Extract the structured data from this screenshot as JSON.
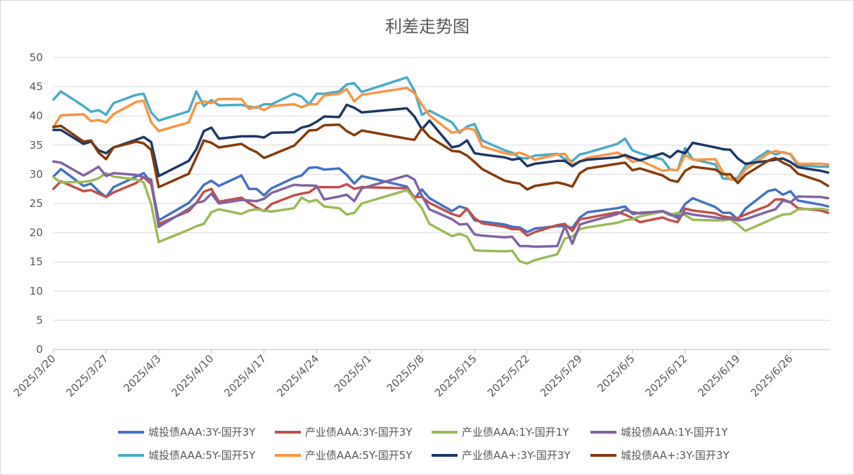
{
  "chart_data": {
    "type": "line",
    "title": "利差走势图",
    "xlabel": "",
    "ylabel": "",
    "ylim": [
      0,
      50
    ],
    "yticks": [
      0,
      5,
      10,
      15,
      20,
      25,
      30,
      35,
      40,
      45,
      50
    ],
    "grid": true,
    "legend_position": "bottom",
    "x_tick_labels": [
      "2025/3/20",
      "2025/3/27",
      "2025/4/3",
      "2025/4/10",
      "2025/4/17",
      "2025/4/24",
      "2025/5/1",
      "2025/5/8",
      "2025/5/15",
      "2025/5/22",
      "2025/5/29",
      "2025/6/5",
      "2025/6/12",
      "2025/6/19",
      "2025/6/26"
    ],
    "x": [
      "2025/3/20",
      "2025/3/21",
      "2025/3/24",
      "2025/3/25",
      "2025/3/26",
      "2025/3/27",
      "2025/3/28",
      "2025/3/31",
      "2025/4/1",
      "2025/4/2",
      "2025/4/3",
      "2025/4/7",
      "2025/4/8",
      "2025/4/9",
      "2025/4/10",
      "2025/4/11",
      "2025/4/14",
      "2025/4/15",
      "2025/4/16",
      "2025/4/17",
      "2025/4/18",
      "2025/4/21",
      "2025/4/22",
      "2025/4/23",
      "2025/4/24",
      "2025/4/25",
      "2025/4/27",
      "2025/4/28",
      "2025/4/29",
      "2025/4/30",
      "2025/5/6",
      "2025/5/7",
      "2025/5/8",
      "2025/5/9",
      "2025/5/12",
      "2025/5/13",
      "2025/5/14",
      "2025/5/15",
      "2025/5/16",
      "2025/5/19",
      "2025/5/20",
      "2025/5/21",
      "2025/5/22",
      "2025/5/23",
      "2025/5/26",
      "2025/5/27",
      "2025/5/28",
      "2025/5/29",
      "2025/5/30",
      "2025/6/3",
      "2025/6/4",
      "2025/6/5",
      "2025/6/6",
      "2025/6/9",
      "2025/6/10",
      "2025/6/11",
      "2025/6/12",
      "2025/6/13",
      "2025/6/16",
      "2025/6/17",
      "2025/6/18",
      "2025/6/19",
      "2025/6/20",
      "2025/6/23",
      "2025/6/24",
      "2025/6/25",
      "2025/6/26",
      "2025/6/27",
      "2025/6/30",
      "2025/7/1"
    ],
    "series": [
      {
        "name": "城投债AAA:3Y-国开3Y",
        "color": "#4472c4",
        "values": [
          29.6,
          30.9,
          28,
          28.4,
          27.1,
          26.1,
          27.8,
          29.6,
          30.2,
          28.6,
          22.1,
          25.1,
          26.5,
          28.2,
          28.9,
          28,
          29.8,
          27.5,
          27.5,
          26.4,
          27.6,
          29.4,
          29.8,
          31.1,
          31.2,
          30.8,
          31,
          29.9,
          28.4,
          29.7,
          27.9,
          25.8,
          27.4,
          25.9,
          23.7,
          24.5,
          24.1,
          22.1,
          21.9,
          21.4,
          21,
          20.9,
          20.1,
          20.7,
          21.1,
          21.1,
          20.8,
          22.6,
          23.5,
          24.2,
          24.5,
          23.2,
          23.4,
          23.6,
          23,
          22.9,
          24.9,
          25.9,
          24.4,
          23.4,
          23.4,
          22.3,
          24.1,
          27.1,
          27.4,
          26.5,
          27.1,
          25.5,
          24.8,
          24.5
        ]
      },
      {
        "name": "产业债AAA:3Y-国开3Y",
        "color": "#c0504d",
        "values": [
          27.5,
          28.8,
          27.1,
          27.3,
          26.7,
          26.1,
          26.9,
          28.5,
          29.5,
          28.3,
          21.5,
          23.7,
          25.1,
          27,
          27.5,
          25.3,
          26,
          25.1,
          24.3,
          23.7,
          24.9,
          26.4,
          26.7,
          26.9,
          27.8,
          27.8,
          27.8,
          28.3,
          27.5,
          27.8,
          27.6,
          26.1,
          26.1,
          25.1,
          23.2,
          22.8,
          24.1,
          22.5,
          21.6,
          21,
          20.6,
          20.6,
          19.5,
          20.1,
          21.3,
          21.5,
          20.3,
          22.3,
          22.5,
          23.5,
          23.1,
          22.5,
          21.8,
          22.6,
          22.1,
          21.8,
          24.1,
          23.8,
          23.3,
          22.8,
          22.6,
          22.5,
          23.1,
          24.6,
          25.7,
          25.7,
          25.2,
          24.2,
          23.8,
          23.4
        ]
      },
      {
        "name": "产业债AAA:1Y-国开1Y",
        "color": "#9bbb59",
        "values": [
          29.5,
          28.6,
          28.7,
          28.9,
          29.3,
          30.2,
          29.6,
          29.1,
          28.6,
          24.9,
          18.4,
          20.5,
          21.1,
          21.5,
          23.5,
          24,
          23.2,
          23.8,
          24,
          23.8,
          23.6,
          24.2,
          26,
          25.3,
          25.6,
          24.5,
          24.2,
          23.1,
          23.4,
          25,
          27.3,
          25.8,
          24.2,
          21.5,
          19.4,
          19.8,
          19.3,
          17,
          16.9,
          16.8,
          16.9,
          15.1,
          14.7,
          15.3,
          16.3,
          19,
          19.3,
          20.6,
          20.9,
          21.7,
          22.1,
          22.3,
          22.8,
          23.6,
          23.1,
          23.4,
          23,
          22.2,
          22.1,
          22.1,
          22.3,
          21.4,
          20.3,
          22,
          22.6,
          23.1,
          23.2,
          24,
          24.1,
          23.9
        ]
      },
      {
        "name": "城投债AAA:1Y-国开1Y",
        "color": "#8064a2",
        "values": [
          32.2,
          32,
          29.8,
          30.5,
          31.3,
          29.7,
          30.2,
          29.9,
          29.5,
          29.1,
          21,
          24.1,
          25.1,
          25.4,
          26.7,
          25,
          25.6,
          25.5,
          25.4,
          25.8,
          26.8,
          28.2,
          28.1,
          28.1,
          28,
          25.7,
          26.2,
          26.5,
          25.4,
          27.6,
          29.8,
          29.1,
          26.3,
          24,
          22.3,
          21.4,
          21.5,
          19.7,
          19.5,
          19.2,
          19.3,
          17.7,
          17.7,
          17.6,
          17.7,
          21.1,
          18.1,
          21.4,
          21.8,
          23.2,
          23.9,
          23.5,
          23.3,
          23.7,
          23.2,
          22.5,
          23.4,
          23.1,
          22.6,
          22.4,
          22.4,
          22.1,
          22.3,
          23.6,
          24,
          25.5,
          25.2,
          26.2,
          26.1,
          25.9
        ]
      },
      {
        "name": "城投债AAA:5Y-国开5Y",
        "color": "#4bacc6",
        "values": [
          42.8,
          44.2,
          41.7,
          40.7,
          41,
          40.2,
          42.2,
          43.6,
          43.8,
          40.6,
          39.2,
          40.8,
          44.2,
          41.7,
          42.7,
          41.8,
          41.9,
          41.6,
          41.4,
          42,
          42,
          43.8,
          43.3,
          42,
          43.8,
          43.8,
          44.2,
          45.4,
          45.6,
          44.1,
          46.6,
          44.3,
          40.2,
          40.9,
          38.9,
          37.1,
          38.2,
          38.6,
          35.8,
          34.1,
          33.7,
          32.8,
          32.7,
          33.2,
          33.5,
          32.6,
          32.3,
          33.4,
          33.7,
          35.2,
          36.1,
          34.1,
          33.6,
          32.5,
          30.8,
          30.7,
          34.5,
          32.6,
          31.7,
          29.3,
          29.2,
          29.4,
          31.4,
          34,
          33.4,
          33.8,
          33.4,
          31.5,
          31.3,
          31.3
        ]
      },
      {
        "name": "产业债AAA:5Y-国开5Y",
        "color": "#f79646",
        "values": [
          38.1,
          40.1,
          40.3,
          39.1,
          39.3,
          38.9,
          40.3,
          42.4,
          42.6,
          38.9,
          37.4,
          38.9,
          42.1,
          42.5,
          42.2,
          42.9,
          42.9,
          41.2,
          41.6,
          41,
          41.7,
          42,
          41.5,
          42,
          42,
          43.5,
          43.8,
          44.6,
          42.5,
          43.6,
          44.8,
          43.9,
          41.9,
          40.1,
          37.1,
          37.4,
          37.9,
          37.6,
          34.8,
          33.6,
          33.4,
          33.7,
          33.2,
          32.5,
          33.4,
          33.5,
          31.7,
          32.2,
          32.8,
          33.7,
          33.1,
          32.1,
          32.4,
          30.6,
          30.8,
          30.7,
          33.3,
          32.5,
          32.6,
          30.4,
          29.1,
          29,
          30.8,
          33.5,
          34,
          33.7,
          33.5,
          31.8,
          31.8,
          31.7
        ]
      },
      {
        "name": "产业债AA+:3Y-国开3Y",
        "color": "#1f3864",
        "values": [
          37.6,
          37.6,
          35.2,
          35.6,
          34.1,
          33.6,
          34.6,
          35.9,
          36.4,
          35.5,
          29.7,
          32.3,
          34.3,
          37.4,
          38,
          36.1,
          36.5,
          36.5,
          36.5,
          36.3,
          37.1,
          37.2,
          38,
          38.3,
          39,
          39.9,
          39.8,
          41.9,
          41.4,
          40.6,
          41.3,
          39.9,
          37.7,
          39.2,
          34.6,
          34.9,
          35.8,
          33.6,
          33.4,
          32.9,
          32.5,
          32.7,
          31.4,
          31.8,
          32.3,
          32.3,
          31.4,
          32.2,
          32.5,
          32.9,
          33.3,
          32.8,
          32.4,
          33.6,
          32.9,
          34,
          33.6,
          35.4,
          34.6,
          34.3,
          34.2,
          32.7,
          31.8,
          32.3,
          32.5,
          32.7,
          32.1,
          31.2,
          30.6,
          30.3
        ]
      },
      {
        "name": "城投债AA+:3Y-国开3Y",
        "color": "#843c0c",
        "values": [
          38.1,
          38.3,
          35.6,
          35.8,
          33.7,
          32.6,
          34.6,
          35.6,
          35.3,
          34.2,
          27.8,
          30.1,
          32.9,
          35.8,
          35.4,
          34.6,
          35.2,
          34.4,
          33.8,
          32.8,
          33.3,
          34.9,
          36.2,
          37.5,
          37.6,
          38.4,
          38.5,
          37.4,
          36.7,
          37.5,
          36.1,
          35.9,
          37.9,
          36.4,
          34,
          33.9,
          33.2,
          32.1,
          30.9,
          28.9,
          28.6,
          28.4,
          27.4,
          28,
          28.6,
          28.3,
          27.9,
          30.2,
          31,
          31.8,
          32,
          30.7,
          31,
          29.8,
          29,
          28.7,
          30.6,
          31.3,
          30.8,
          30,
          30,
          28.5,
          29.9,
          32.3,
          32.8,
          32,
          31.4,
          30.1,
          28.8,
          28
        ]
      }
    ]
  }
}
